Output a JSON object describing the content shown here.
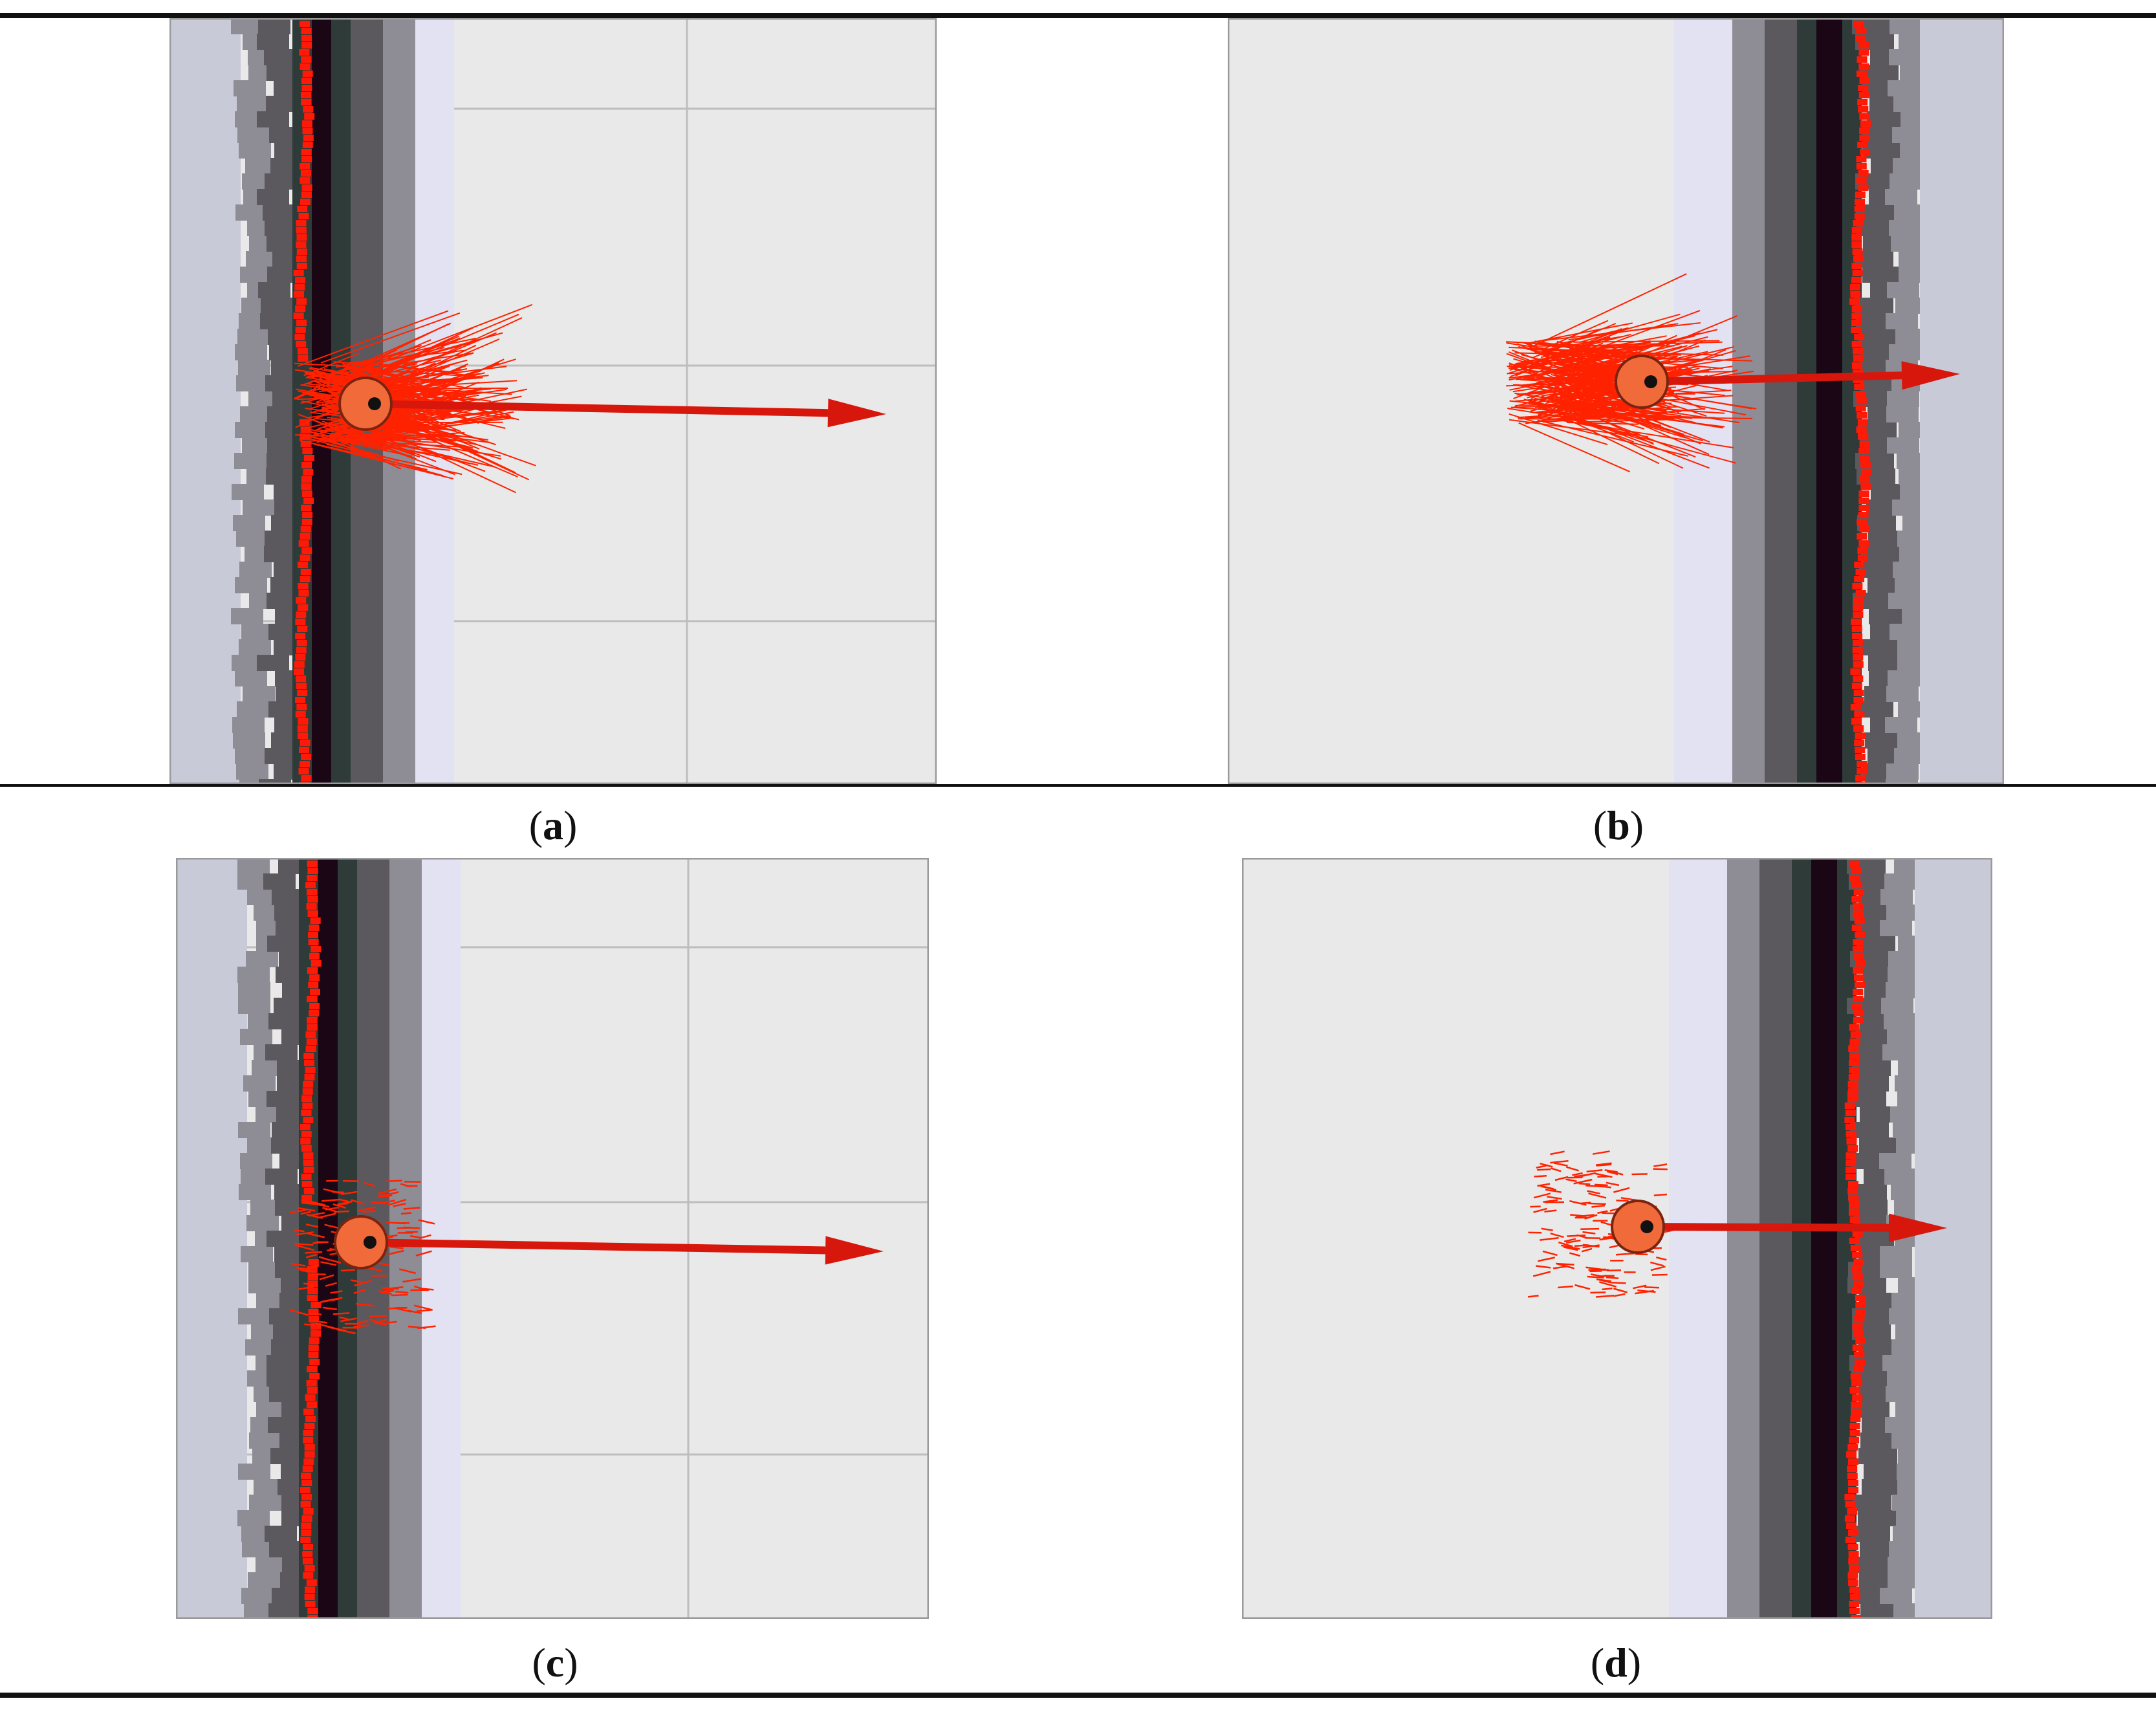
{
  "figure": {
    "panels": [
      {
        "id": "a",
        "caption_open": "(",
        "caption_letter": "a",
        "caption_close": ")",
        "wall_side": "left",
        "particle_spread": "wide",
        "robot_icon": "robot-icon"
      },
      {
        "id": "b",
        "caption_open": "(",
        "caption_letter": "b",
        "caption_close": ")",
        "wall_side": "right",
        "particle_spread": "wide",
        "robot_icon": "robot-icon"
      },
      {
        "id": "c",
        "caption_open": "(",
        "caption_letter": "c",
        "caption_close": ")",
        "wall_side": "left",
        "particle_spread": "narrow",
        "robot_icon": "robot-icon"
      },
      {
        "id": "d",
        "caption_open": "(",
        "caption_letter": "d",
        "caption_close": ")",
        "wall_side": "right",
        "particle_spread": "narrow",
        "robot_icon": "robot-icon"
      }
    ],
    "colors": {
      "floor": "#e9e9e9",
      "grid": "#bdbdbd",
      "wall_core": "#1a0614",
      "wall_dark": "#2f3b39",
      "wall_mid": "#5b585e",
      "wall_light": "#8e8c94",
      "wall_haze": "#c9cad8",
      "edge_lavender": "#e2e2f3",
      "laser": "#ff1a08",
      "particle": "#ff2200",
      "robot": "#f06a3a",
      "heading_arrow": "#d8170c"
    }
  }
}
